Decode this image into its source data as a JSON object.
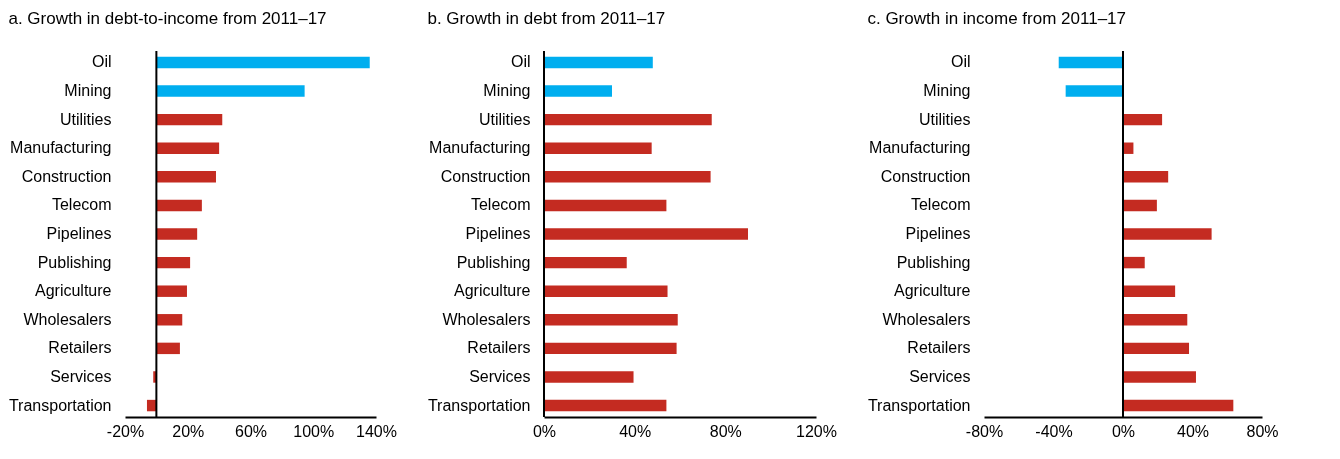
{
  "chart_data": [
    {
      "type": "bar",
      "orientation": "horizontal",
      "title": "a. Growth in debt-to-income from 2011–17",
      "categories": [
        "Oil",
        "Mining",
        "Utilities",
        "Manufacturing",
        "Construction",
        "Telecom",
        "Pipelines",
        "Publishing",
        "Agriculture",
        "Wholesalers",
        "Retailers",
        "Services",
        "Transportation"
      ],
      "values": [
        136,
        94.5,
        42,
        40,
        38,
        29,
        26,
        21.5,
        19.5,
        16.5,
        15,
        -2,
        -6
      ],
      "colors": [
        "#00aeef",
        "#00aeef",
        "#c42b21",
        "#c42b21",
        "#c42b21",
        "#c42b21",
        "#c42b21",
        "#c42b21",
        "#c42b21",
        "#c42b21",
        "#c42b21",
        "#c42b21",
        "#c42b21"
      ],
      "xlim": [
        -20,
        140
      ],
      "xticks": [
        {
          "value": -20,
          "label": "-20%"
        },
        {
          "value": 20,
          "label": "20%"
        },
        {
          "value": 60,
          "label": "60%"
        },
        {
          "value": 100,
          "label": "100%"
        },
        {
          "value": 140,
          "label": "140%"
        }
      ]
    },
    {
      "type": "bar",
      "orientation": "horizontal",
      "title": "b. Growth in debt from 2011–17",
      "categories": [
        "Oil",
        "Mining",
        "Utilities",
        "Manufacturing",
        "Construction",
        "Telecom",
        "Pipelines",
        "Publishing",
        "Agriculture",
        "Wholesalers",
        "Retailers",
        "Services",
        "Transportation"
      ],
      "values": [
        48,
        30,
        74,
        47.5,
        73.5,
        54,
        90,
        36.5,
        54.5,
        59,
        58.5,
        39.5,
        54
      ],
      "colors": [
        "#00aeef",
        "#00aeef",
        "#c42b21",
        "#c42b21",
        "#c42b21",
        "#c42b21",
        "#c42b21",
        "#c42b21",
        "#c42b21",
        "#c42b21",
        "#c42b21",
        "#c42b21",
        "#c42b21"
      ],
      "xlim": [
        0,
        120
      ],
      "xticks": [
        {
          "value": 0,
          "label": "0%"
        },
        {
          "value": 40,
          "label": "40%"
        },
        {
          "value": 80,
          "label": "80%"
        },
        {
          "value": 120,
          "label": "120%"
        }
      ]
    },
    {
      "type": "bar",
      "orientation": "horizontal",
      "title": "c. Growth in income from 2011–17",
      "categories": [
        "Oil",
        "Mining",
        "Utilities",
        "Manufacturing",
        "Construction",
        "Telecom",
        "Pipelines",
        "Publishing",
        "Agriculture",
        "Wholesalers",
        "Retailers",
        "Services",
        "Transportation"
      ],
      "values": [
        -37,
        -33,
        22.5,
        6,
        26,
        19.5,
        51,
        12.5,
        30,
        37,
        38,
        42,
        63.5
      ],
      "colors": [
        "#00aeef",
        "#00aeef",
        "#c42b21",
        "#c42b21",
        "#c42b21",
        "#c42b21",
        "#c42b21",
        "#c42b21",
        "#c42b21",
        "#c42b21",
        "#c42b21",
        "#c42b21",
        "#c42b21"
      ],
      "xlim": [
        -80,
        80
      ],
      "xticks": [
        {
          "value": -80,
          "label": "-80%"
        },
        {
          "value": -40,
          "label": "-40%"
        },
        {
          "value": 0,
          "label": "0%"
        },
        {
          "value": 40,
          "label": "40%"
        },
        {
          "value": 80,
          "label": "80%"
        }
      ]
    }
  ]
}
